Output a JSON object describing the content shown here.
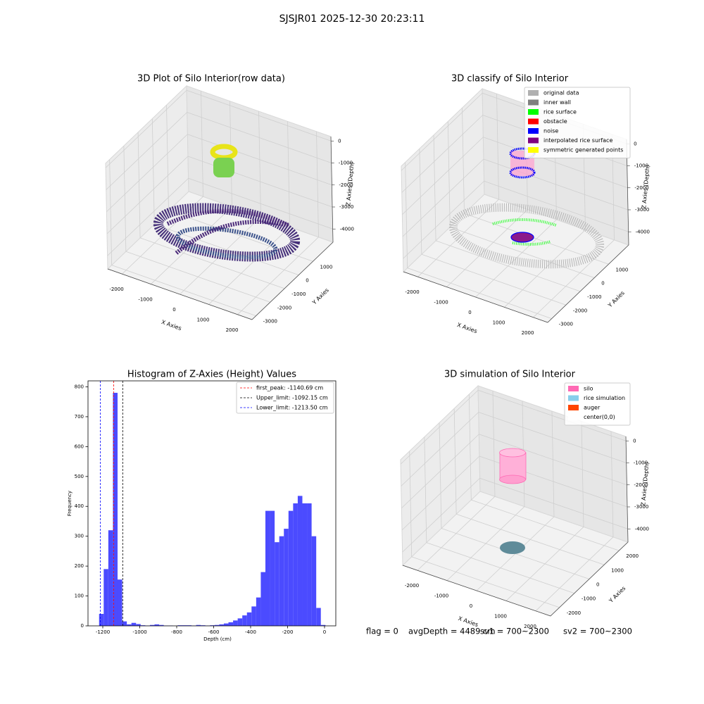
{
  "title": "SJSJR01 2025-12-30 20:23:11",
  "footer": [
    "flag = 0",
    "avgDepth = 4489 cm",
    "sv1 = 700~2300",
    "sv2 = 700~2300"
  ],
  "chart_data": [
    {
      "type": "scatter3d",
      "title": "3D Plot of Silo Interior(row data)",
      "xlabel": "X Axies",
      "ylabel": "Y Axies",
      "zlabel": "Z Axies (Depth)",
      "xlim": [
        -2500,
        2500
      ],
      "ylim": [
        -3280,
        2410
      ],
      "zlim": [
        -4600,
        200
      ],
      "xticks": [
        -2000,
        -1000,
        0,
        1000,
        2000
      ],
      "yticks": [
        1000,
        0,
        -1000,
        -2000,
        -3000
      ],
      "zticks": [
        0,
        -1000,
        -2000,
        -3000,
        -4000
      ]
    },
    {
      "type": "scatter3d",
      "title": "3D classify of Silo Interior",
      "xlabel": "X Axies",
      "ylabel": "Y Axies",
      "zlabel": "Z Axies (Depth)",
      "xlim": [
        -2500,
        2500
      ],
      "ylim": [
        -3280,
        2410
      ],
      "zlim": [
        -4600,
        200
      ],
      "xticks": [
        -2000,
        -1000,
        0,
        1000,
        2000
      ],
      "yticks": [
        1000,
        0,
        -1000,
        -2000,
        -3000
      ],
      "zticks": [
        0,
        -1000,
        -2000,
        -3000,
        -4000
      ],
      "legend": [
        {
          "name": "original data",
          "color": "#b0b0b0"
        },
        {
          "name": "inner wall",
          "color": "#808080"
        },
        {
          "name": "rice surface",
          "color": "#00ff00"
        },
        {
          "name": "obstacle",
          "color": "#ff0000"
        },
        {
          "name": "noise",
          "color": "#0000ff"
        },
        {
          "name": "interpolated rice surface",
          "color": "#800080"
        },
        {
          "name": "symmetric generated points",
          "color": "#ffff00"
        }
      ]
    },
    {
      "type": "histogram",
      "title": "Histogram of Z-Axies (Height) Values",
      "xlabel": "Depth (cm)",
      "ylabel": "Frequency",
      "color": "#4b4bff",
      "bins": [
        -1220,
        -1195,
        -1170,
        -1145,
        -1120,
        -1095,
        -1070,
        -1045,
        -1020,
        -995,
        -970,
        -945,
        -920,
        -895,
        -870,
        -845,
        -820,
        -795,
        -770,
        -745,
        -720,
        -695,
        -670,
        -645,
        -620,
        -595,
        -570,
        -545,
        -520,
        -495,
        -470,
        -445,
        -420,
        -395,
        -370,
        -345,
        -320,
        -295,
        -270,
        -245,
        -220,
        -195,
        -170,
        -145,
        -120,
        -95,
        -70,
        -45,
        -20,
        5
      ],
      "counts": [
        40,
        190,
        320,
        780,
        155,
        15,
        5,
        10,
        6,
        2,
        1,
        3,
        5,
        3,
        1,
        1,
        0,
        2,
        2,
        2,
        1,
        3,
        2,
        1,
        2,
        3,
        5,
        8,
        12,
        18,
        25,
        35,
        45,
        65,
        95,
        180,
        385,
        385,
        280,
        300,
        325,
        385,
        410,
        435,
        410,
        410,
        300,
        60,
        3
      ],
      "xlim": [
        -1280,
        61
      ],
      "ylim": [
        0,
        820
      ],
      "xticks": [
        -1200,
        -1000,
        -800,
        -600,
        -400,
        -200,
        0
      ],
      "yticks": [
        0,
        100,
        200,
        300,
        400,
        500,
        600,
        700,
        800
      ],
      "lines": [
        {
          "value": -1140.69,
          "label": "first_peak: -1140.69 cm",
          "color": "#ff0000"
        },
        {
          "value": -1092.15,
          "label": "Upper_limit: -1092.15 cm",
          "color": "#000000"
        },
        {
          "value": -1213.5,
          "label": "Lower_limit: -1213.50 cm",
          "color": "#0000ff"
        }
      ]
    },
    {
      "type": "scatter3d",
      "title": "3D simulation of Silo Interior",
      "xlabel": "X Axies",
      "ylabel": "Y Axies",
      "zlabel": "Z Axies (Depth)",
      "xlim": [
        -2500,
        2500
      ],
      "ylim": [
        -2600,
        2600
      ],
      "zlim": [
        -4600,
        200
      ],
      "xticks": [
        -2000,
        -1000,
        0,
        1000,
        2000
      ],
      "yticks": [
        2000,
        1000,
        0,
        -1000,
        -2000
      ],
      "zticks": [
        0,
        -1000,
        -2000,
        -3000,
        -4000
      ],
      "legend": [
        {
          "name": "silo",
          "color": "#ff69b4"
        },
        {
          "name": "rice simulation",
          "color": "#87ceeb"
        },
        {
          "name": "auger",
          "color": "#ff4500"
        },
        {
          "name": "center(0,0)",
          "color": "#ffffff"
        }
      ]
    }
  ]
}
